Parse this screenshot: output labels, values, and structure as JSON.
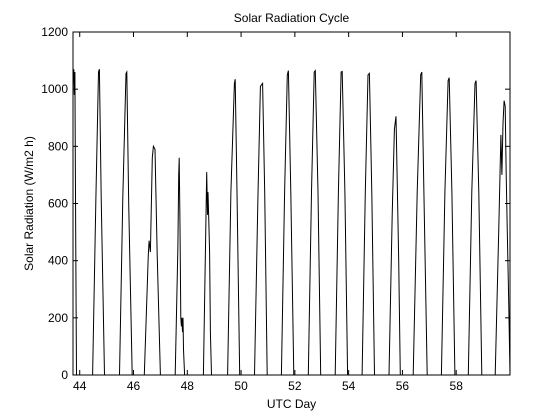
{
  "chart_data": {
    "type": "line",
    "title": "Solar Radiation Cycle",
    "xlabel": "UTC Day",
    "ylabel": "Solar Radiation (W/m2 h)",
    "xlim": [
      43.75,
      60.0
    ],
    "ylim": [
      0,
      1200
    ],
    "xticks": [
      44,
      46,
      48,
      50,
      52,
      54,
      56,
      58
    ],
    "yticks": [
      0,
      200,
      400,
      600,
      800,
      1000,
      1200
    ],
    "grid": false,
    "line_color": "#000000",
    "series": [
      {
        "values": [
          [
            43.75,
            0
          ],
          [
            43.75,
            1030
          ],
          [
            43.78,
            1070
          ],
          [
            43.8,
            980
          ],
          [
            43.82,
            1060
          ],
          [
            43.84,
            700
          ],
          [
            43.86,
            300
          ],
          [
            43.88,
            0
          ],
          [
            44.48,
            0
          ],
          [
            44.6,
            620
          ],
          [
            44.7,
            1060
          ],
          [
            44.73,
            1070
          ],
          [
            44.8,
            620
          ],
          [
            44.92,
            0
          ],
          [
            45.48,
            0
          ],
          [
            45.6,
            620
          ],
          [
            45.72,
            1055
          ],
          [
            45.75,
            1060
          ],
          [
            45.82,
            600
          ],
          [
            45.95,
            0
          ],
          [
            46.4,
            0
          ],
          [
            46.55,
            420
          ],
          [
            46.58,
            470
          ],
          [
            46.63,
            430
          ],
          [
            46.7,
            760
          ],
          [
            46.74,
            800
          ],
          [
            46.8,
            790
          ],
          [
            46.88,
            420
          ],
          [
            47.0,
            0
          ],
          [
            47.55,
            0
          ],
          [
            47.65,
            450
          ],
          [
            47.68,
            700
          ],
          [
            47.7,
            760
          ],
          [
            47.73,
            520
          ],
          [
            47.76,
            200
          ],
          [
            47.78,
            170
          ],
          [
            47.8,
            200
          ],
          [
            47.82,
            150
          ],
          [
            47.84,
            200
          ],
          [
            47.86,
            90
          ],
          [
            47.9,
            0
          ],
          [
            48.6,
            0
          ],
          [
            48.7,
            580
          ],
          [
            48.72,
            710
          ],
          [
            48.75,
            560
          ],
          [
            48.77,
            640
          ],
          [
            48.8,
            540
          ],
          [
            48.83,
            430
          ],
          [
            48.86,
            150
          ],
          [
            48.9,
            0
          ],
          [
            49.5,
            0
          ],
          [
            49.62,
            640
          ],
          [
            49.75,
            1020
          ],
          [
            49.78,
            1035
          ],
          [
            49.85,
            640
          ],
          [
            49.95,
            0
          ],
          [
            50.5,
            0
          ],
          [
            50.62,
            600
          ],
          [
            50.72,
            1010
          ],
          [
            50.8,
            1020
          ],
          [
            50.88,
            640
          ],
          [
            50.97,
            0
          ],
          [
            51.5,
            0
          ],
          [
            51.62,
            640
          ],
          [
            51.72,
            1050
          ],
          [
            51.76,
            1065
          ],
          [
            51.85,
            640
          ],
          [
            51.96,
            0
          ],
          [
            52.5,
            0
          ],
          [
            52.62,
            640
          ],
          [
            52.72,
            1060
          ],
          [
            52.76,
            1065
          ],
          [
            52.86,
            640
          ],
          [
            52.96,
            0
          ],
          [
            53.5,
            0
          ],
          [
            53.62,
            640
          ],
          [
            53.72,
            1060
          ],
          [
            53.76,
            1062
          ],
          [
            53.86,
            640
          ],
          [
            53.96,
            0
          ],
          [
            54.5,
            0
          ],
          [
            54.62,
            640
          ],
          [
            54.72,
            1050
          ],
          [
            54.77,
            1055
          ],
          [
            54.86,
            640
          ],
          [
            54.96,
            0
          ],
          [
            55.5,
            0
          ],
          [
            55.62,
            560
          ],
          [
            55.7,
            860
          ],
          [
            55.76,
            905
          ],
          [
            55.8,
            700
          ],
          [
            55.86,
            400
          ],
          [
            55.92,
            0
          ],
          [
            56.4,
            0
          ],
          [
            56.55,
            640
          ],
          [
            56.68,
            1050
          ],
          [
            56.72,
            1060
          ],
          [
            56.8,
            640
          ],
          [
            56.92,
            0
          ],
          [
            57.45,
            0
          ],
          [
            57.58,
            640
          ],
          [
            57.7,
            1030
          ],
          [
            57.74,
            1040
          ],
          [
            57.84,
            640
          ],
          [
            57.95,
            0
          ],
          [
            58.45,
            0
          ],
          [
            58.58,
            640
          ],
          [
            58.7,
            1020
          ],
          [
            58.74,
            1030
          ],
          [
            58.84,
            640
          ],
          [
            58.95,
            0
          ],
          [
            59.45,
            0
          ],
          [
            59.58,
            500
          ],
          [
            59.66,
            840
          ],
          [
            59.7,
            700
          ],
          [
            59.74,
            880
          ],
          [
            59.78,
            960
          ],
          [
            59.82,
            940
          ],
          [
            59.86,
            700
          ],
          [
            59.9,
            500
          ],
          [
            59.95,
            260
          ],
          [
            60.0,
            0
          ]
        ]
      }
    ]
  }
}
